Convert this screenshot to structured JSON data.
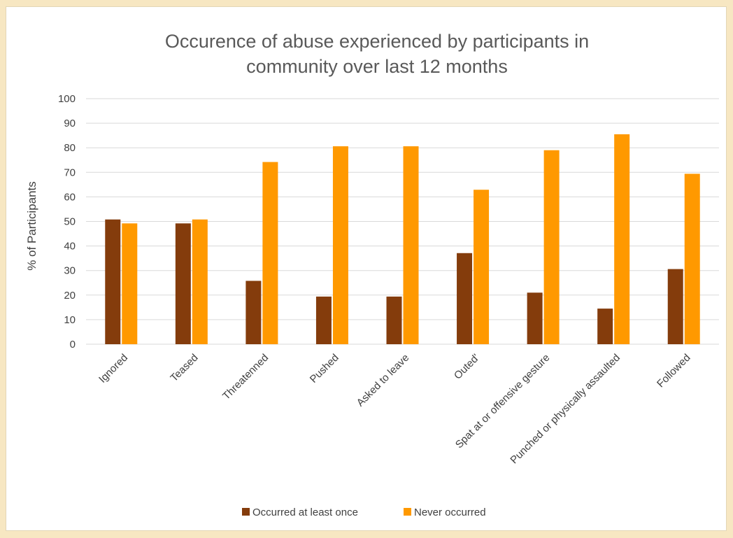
{
  "chart_data": {
    "type": "bar",
    "title_lines": [
      "Occurence of abuse experienced by participants in",
      "community over last 12 months"
    ],
    "ylabel": "% of Participants",
    "xlabel": "",
    "ylim": [
      0,
      100
    ],
    "ytick_step": 10,
    "grid": true,
    "legend_position": "bottom",
    "categories": [
      "Ignored",
      "Teased",
      "Threatenned",
      "Pushed",
      "Asked to leave",
      "Outed'",
      "Spat at or offensive gesture",
      "Punched or physically assaulted",
      "Followed"
    ],
    "series": [
      {
        "name": "Occurred at least once",
        "color": "#843c0c",
        "values": [
          50.8,
          49.2,
          25.8,
          19.4,
          19.4,
          37.1,
          21.0,
          14.5,
          30.6
        ]
      },
      {
        "name": "Never occurred",
        "color": "#ff9900",
        "values": [
          49.2,
          50.8,
          74.2,
          80.6,
          80.6,
          62.9,
          79.0,
          85.5,
          69.4
        ]
      }
    ]
  }
}
